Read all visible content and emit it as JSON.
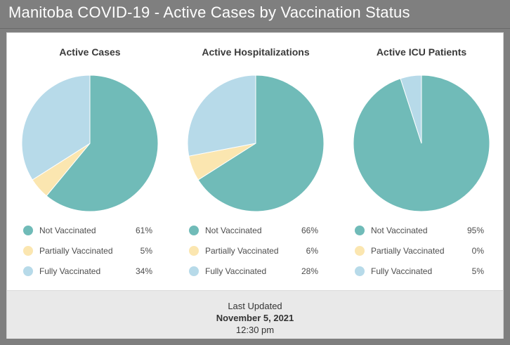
{
  "title": "Manitoba COVID-19 - Active Cases by Vaccination Status",
  "colors": {
    "not_vaccinated": "#70bbb8",
    "partially_vaccinated": "#fbe6b0",
    "fully_vaccinated": "#b7dae9"
  },
  "chart_data": [
    {
      "type": "pie",
      "title": "Active Cases",
      "categories": [
        "Not Vaccinated",
        "Partially Vaccinated",
        "Fully Vaccinated"
      ],
      "values": [
        61,
        5,
        34
      ],
      "labels": [
        "61%",
        "5%",
        "34%"
      ],
      "legend": "bottom"
    },
    {
      "type": "pie",
      "title": "Active Hospitalizations",
      "categories": [
        "Not Vaccinated",
        "Partially Vaccinated",
        "Fully Vaccinated"
      ],
      "values": [
        66,
        6,
        28
      ],
      "labels": [
        "66%",
        "6%",
        "28%"
      ],
      "legend": "bottom"
    },
    {
      "type": "pie",
      "title": "Active ICU Patients",
      "categories": [
        "Not Vaccinated",
        "Partially Vaccinated",
        "Fully Vaccinated"
      ],
      "values": [
        95,
        0,
        5
      ],
      "labels": [
        "95%",
        "0%",
        "5%"
      ],
      "legend": "bottom"
    }
  ],
  "footer": {
    "label": "Last Updated",
    "date": "November 5, 2021",
    "time": "12:30 pm"
  }
}
